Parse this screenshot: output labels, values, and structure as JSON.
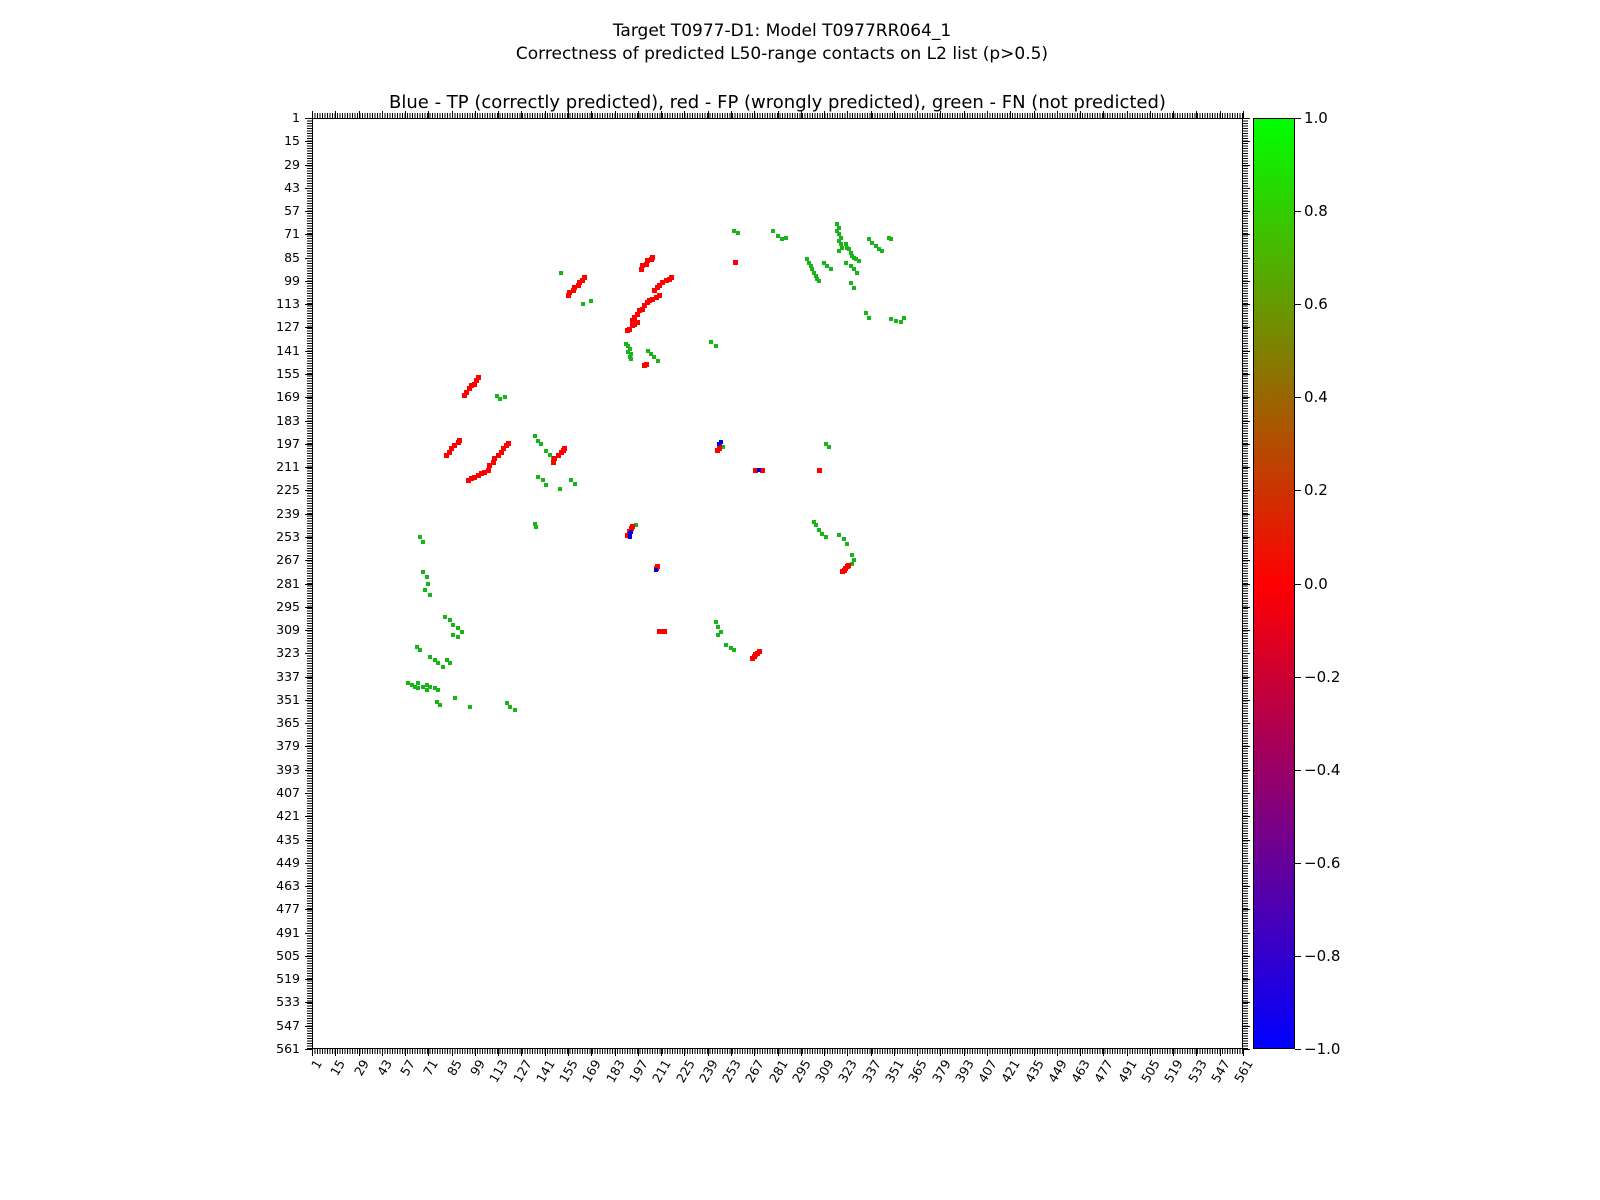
{
  "figure": {
    "suptitle_line1": "Target T0977-D1: Model T0977RR064_1",
    "suptitle_line2": "Correctness of predicted L50-range contacts on L2 list (p>0.5)",
    "axes_title": "Blue - TP (correctly predicted), red - FP (wrongly predicted), green - FN (not predicted)"
  },
  "chart_data": {
    "type": "scatter",
    "title": "Blue - TP (correctly predicted), red - FP (wrongly predicted), green - FN (not predicted)",
    "subtitle_line1": "Target T0977-D1: Model T0977RR064_1",
    "subtitle_line2": "Correctness of predicted L50-range contacts on L2 list (p>0.5)",
    "xlabel": "",
    "ylabel": "",
    "x_range": [
      1,
      561
    ],
    "y_range": [
      1,
      561
    ],
    "y_axis_inverted": true,
    "grid": false,
    "tick_step": 14,
    "tick_values": [
      1,
      15,
      29,
      43,
      57,
      71,
      85,
      99,
      113,
      127,
      141,
      155,
      169,
      183,
      197,
      211,
      225,
      239,
      253,
      267,
      281,
      295,
      309,
      323,
      337,
      351,
      365,
      379,
      393,
      407,
      421,
      435,
      449,
      463,
      477,
      491,
      505,
      519,
      533,
      547,
      561
    ],
    "colorbar": {
      "min": -1.0,
      "max": 1.0,
      "tick_labels": [
        "1.0",
        "0.8",
        "0.6",
        "0.4",
        "0.2",
        "0.0",
        "−0.2",
        "−0.4",
        "−0.6",
        "−0.8",
        "−1.0"
      ],
      "stops": [
        {
          "value": 1.0,
          "color": "#00ff00"
        },
        {
          "value": 0.5,
          "color": "#808000"
        },
        {
          "value": 0.0,
          "color": "#ff0000"
        },
        {
          "value": -0.5,
          "color": "#800080"
        },
        {
          "value": -1.0,
          "color": "#0000ff"
        }
      ]
    },
    "series": [
      {
        "name": "FN (not predicted)",
        "short": "fn",
        "color": "#18b518",
        "marker_px": 4,
        "points": [
          [
            255,
            69
          ],
          [
            257,
            70
          ],
          [
            278,
            69
          ],
          [
            281,
            72
          ],
          [
            284,
            74
          ],
          [
            286,
            73
          ],
          [
            317,
            65
          ],
          [
            318,
            67
          ],
          [
            317,
            69
          ],
          [
            318,
            71
          ],
          [
            319,
            73
          ],
          [
            318,
            75
          ],
          [
            319,
            77
          ],
          [
            320,
            79
          ],
          [
            318,
            81
          ],
          [
            322,
            77
          ],
          [
            323,
            79
          ],
          [
            324,
            80
          ],
          [
            325,
            82
          ],
          [
            326,
            84
          ],
          [
            327,
            85
          ],
          [
            328,
            86
          ],
          [
            330,
            87
          ],
          [
            336,
            74
          ],
          [
            338,
            76
          ],
          [
            340,
            78
          ],
          [
            342,
            80
          ],
          [
            344,
            81
          ],
          [
            348,
            73
          ],
          [
            349,
            74
          ],
          [
            299,
            86
          ],
          [
            300,
            88
          ],
          [
            301,
            90
          ],
          [
            302,
            92
          ],
          [
            303,
            94
          ],
          [
            304,
            96
          ],
          [
            305,
            98
          ],
          [
            306,
            99
          ],
          [
            309,
            88
          ],
          [
            311,
            90
          ],
          [
            313,
            92
          ],
          [
            322,
            88
          ],
          [
            325,
            90
          ],
          [
            327,
            92
          ],
          [
            329,
            94
          ],
          [
            325,
            100
          ],
          [
            327,
            103
          ],
          [
            334,
            118
          ],
          [
            336,
            121
          ],
          [
            349,
            122
          ],
          [
            352,
            123
          ],
          [
            355,
            124
          ],
          [
            357,
            121
          ],
          [
            151,
            94
          ],
          [
            169,
            111
          ],
          [
            164,
            113
          ],
          [
            190,
            137
          ],
          [
            191,
            138
          ],
          [
            192,
            140
          ],
          [
            191,
            142
          ],
          [
            193,
            143
          ],
          [
            192,
            145
          ],
          [
            193,
            146
          ],
          [
            203,
            141
          ],
          [
            205,
            143
          ],
          [
            207,
            145
          ],
          [
            209,
            147
          ],
          [
            241,
            136
          ],
          [
            244,
            138
          ],
          [
            112,
            168
          ],
          [
            114,
            170
          ],
          [
            117,
            169
          ],
          [
            135,
            192
          ],
          [
            137,
            195
          ],
          [
            139,
            197
          ],
          [
            142,
            201
          ],
          [
            144,
            204
          ],
          [
            146,
            206
          ],
          [
            137,
            217
          ],
          [
            140,
            219
          ],
          [
            142,
            222
          ],
          [
            157,
            219
          ],
          [
            159,
            221
          ],
          [
            135,
            245
          ],
          [
            136,
            247
          ],
          [
            150,
            224
          ],
          [
            66,
            253
          ],
          [
            68,
            256
          ],
          [
            68,
            274
          ],
          [
            70,
            277
          ],
          [
            71,
            281
          ],
          [
            69,
            285
          ],
          [
            72,
            288
          ],
          [
            81,
            301
          ],
          [
            84,
            303
          ],
          [
            86,
            306
          ],
          [
            89,
            308
          ],
          [
            91,
            310
          ],
          [
            86,
            312
          ],
          [
            89,
            313
          ],
          [
            64,
            319
          ],
          [
            66,
            321
          ],
          [
            72,
            325
          ],
          [
            75,
            327
          ],
          [
            77,
            329
          ],
          [
            80,
            331
          ],
          [
            82,
            327
          ],
          [
            84,
            329
          ],
          [
            59,
            341
          ],
          [
            61,
            342
          ],
          [
            63,
            343
          ],
          [
            65,
            344
          ],
          [
            68,
            343
          ],
          [
            70,
            342
          ],
          [
            72,
            343
          ],
          [
            75,
            344
          ],
          [
            77,
            345
          ],
          [
            70,
            345
          ],
          [
            65,
            341
          ],
          [
            76,
            352
          ],
          [
            78,
            354
          ],
          [
            87,
            350
          ],
          [
            96,
            355
          ],
          [
            118,
            353
          ],
          [
            120,
            355
          ],
          [
            123,
            357
          ],
          [
            244,
            304
          ],
          [
            245,
            307
          ],
          [
            247,
            310
          ],
          [
            245,
            312
          ],
          [
            250,
            318
          ],
          [
            253,
            320
          ],
          [
            255,
            321
          ],
          [
            303,
            244
          ],
          [
            304,
            246
          ],
          [
            306,
            249
          ],
          [
            308,
            251
          ],
          [
            310,
            253
          ],
          [
            318,
            252
          ],
          [
            321,
            254
          ],
          [
            323,
            257
          ],
          [
            326,
            264
          ],
          [
            327,
            267
          ],
          [
            326,
            269
          ],
          [
            310,
            197
          ],
          [
            312,
            199
          ],
          [
            248,
            199
          ],
          [
            196,
            246
          ]
        ]
      },
      {
        "name": "FP (wrongly predicted)",
        "short": "fp",
        "color": "#ff0000",
        "marker_px": 5,
        "points": [
          [
            155,
            108
          ],
          [
            156,
            106
          ],
          [
            158,
            105
          ],
          [
            159,
            103
          ],
          [
            161,
            102
          ],
          [
            162,
            100
          ],
          [
            164,
            99
          ],
          [
            165,
            97
          ],
          [
            199,
            92
          ],
          [
            200,
            90
          ],
          [
            202,
            89
          ],
          [
            203,
            87
          ],
          [
            205,
            86
          ],
          [
            206,
            85
          ],
          [
            207,
            105
          ],
          [
            209,
            103
          ],
          [
            210,
            102
          ],
          [
            212,
            100
          ],
          [
            214,
            99
          ],
          [
            216,
            98
          ],
          [
            217,
            97
          ],
          [
            194,
            123
          ],
          [
            195,
            121
          ],
          [
            197,
            119
          ],
          [
            198,
            117
          ],
          [
            200,
            116
          ],
          [
            201,
            114
          ],
          [
            203,
            112
          ],
          [
            204,
            111
          ],
          [
            206,
            110
          ],
          [
            208,
            109
          ],
          [
            210,
            108
          ],
          [
            191,
            129
          ],
          [
            192,
            128
          ],
          [
            194,
            126
          ],
          [
            195,
            125
          ],
          [
            197,
            124
          ],
          [
            93,
            168
          ],
          [
            94,
            166
          ],
          [
            96,
            164
          ],
          [
            97,
            162
          ],
          [
            99,
            161
          ],
          [
            100,
            159
          ],
          [
            101,
            157
          ],
          [
            82,
            204
          ],
          [
            84,
            202
          ],
          [
            85,
            200
          ],
          [
            87,
            198
          ],
          [
            89,
            196
          ],
          [
            90,
            195
          ],
          [
            108,
            210
          ],
          [
            110,
            208
          ],
          [
            111,
            206
          ],
          [
            113,
            204
          ],
          [
            115,
            202
          ],
          [
            116,
            200
          ],
          [
            118,
            198
          ],
          [
            119,
            197
          ],
          [
            95,
            219
          ],
          [
            97,
            218
          ],
          [
            99,
            217
          ],
          [
            101,
            216
          ],
          [
            103,
            215
          ],
          [
            105,
            214
          ],
          [
            107,
            213
          ],
          [
            146,
            208
          ],
          [
            147,
            206
          ],
          [
            149,
            204
          ],
          [
            151,
            202
          ],
          [
            152,
            201
          ],
          [
            153,
            200
          ],
          [
            201,
            150
          ],
          [
            202,
            149
          ],
          [
            245,
            201
          ],
          [
            246,
            200
          ],
          [
            246,
            198
          ],
          [
            268,
            213
          ],
          [
            272,
            213
          ],
          [
            306,
            213
          ],
          [
            191,
            252
          ],
          [
            192,
            250
          ],
          [
            193,
            248
          ],
          [
            194,
            247
          ],
          [
            208,
            272
          ],
          [
            209,
            271
          ],
          [
            320,
            274
          ],
          [
            321,
            273
          ],
          [
            322,
            272
          ],
          [
            323,
            271
          ],
          [
            324,
            270
          ],
          [
            210,
            310
          ],
          [
            211,
            310
          ],
          [
            212,
            310
          ],
          [
            213,
            310
          ],
          [
            266,
            326
          ],
          [
            267,
            325
          ],
          [
            268,
            324
          ],
          [
            269,
            323
          ],
          [
            270,
            322
          ],
          [
            256,
            88
          ]
        ]
      },
      {
        "name": "TP (correctly predicted)",
        "short": "tp",
        "color": "#0000dd",
        "marker_px": 4,
        "points": [
          [
            246,
            197
          ],
          [
            247,
            196
          ],
          [
            192,
            251
          ],
          [
            193,
            250
          ],
          [
            192,
            253
          ],
          [
            208,
            273
          ],
          [
            270,
            213
          ]
        ]
      }
    ]
  }
}
